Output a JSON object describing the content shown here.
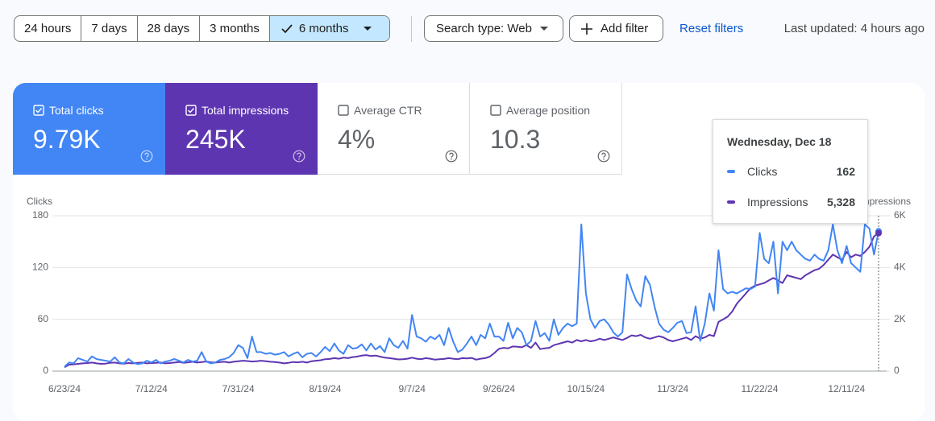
{
  "filters": {
    "ranges": [
      {
        "label": "24 hours",
        "selected": false
      },
      {
        "label": "7 days",
        "selected": false
      },
      {
        "label": "28 days",
        "selected": false
      },
      {
        "label": "3 months",
        "selected": false
      },
      {
        "label": "6 months",
        "selected": true
      }
    ],
    "search_type": "Search type: Web",
    "add_filter": "Add filter",
    "reset": "Reset filters",
    "updated": "Last updated: 4 hours ago"
  },
  "metrics": [
    {
      "label": "Total clicks",
      "value": "9.79K",
      "selected": true,
      "color": "#4285f4"
    },
    {
      "label": "Total impressions",
      "value": "245K",
      "selected": true,
      "color": "#5e35b1"
    },
    {
      "label": "Average CTR",
      "value": "4%",
      "selected": false,
      "color": "#00897b"
    },
    {
      "label": "Average position",
      "value": "10.3",
      "selected": false,
      "color": "#e8710a"
    }
  ],
  "chart_data": {
    "type": "line",
    "y_label": "Clicks",
    "y2_label": "Impressions",
    "categories": [
      "6/23/24",
      null,
      null,
      null,
      null,
      null,
      null,
      null,
      null,
      null,
      null,
      null,
      null,
      null,
      null,
      null,
      null,
      null,
      null,
      "7/12/24",
      null,
      null,
      null,
      null,
      null,
      null,
      null,
      null,
      null,
      null,
      null,
      null,
      null,
      null,
      null,
      null,
      null,
      null,
      "7/31/24",
      null,
      null,
      null,
      null,
      null,
      null,
      null,
      null,
      null,
      null,
      null,
      null,
      null,
      null,
      null,
      null,
      null,
      null,
      "8/19/24",
      null,
      null,
      null,
      null,
      null,
      null,
      null,
      null,
      null,
      null,
      null,
      null,
      null,
      null,
      null,
      null,
      null,
      null,
      "9/7/24",
      null,
      null,
      null,
      null,
      null,
      null,
      null,
      null,
      null,
      null,
      null,
      null,
      null,
      null,
      null,
      null,
      null,
      null,
      "9/26/24",
      null,
      null,
      null,
      null,
      null,
      null,
      null,
      null,
      null,
      null,
      null,
      null,
      null,
      null,
      null,
      null,
      null,
      null,
      "10/15/24",
      null,
      null,
      null,
      null,
      null,
      null,
      null,
      null,
      null,
      null,
      null,
      null,
      null,
      null,
      null,
      null,
      null,
      null,
      "11/3/24",
      null,
      null,
      null,
      null,
      null,
      null,
      null,
      null,
      null,
      null,
      null,
      null,
      null,
      null,
      null,
      null,
      null,
      null,
      "11/22/24",
      null,
      null,
      null,
      null,
      null,
      null,
      null,
      null,
      null,
      null,
      null,
      null,
      null,
      null,
      null,
      null,
      null,
      null,
      "12/11/24",
      null,
      null,
      null,
      null,
      null,
      null,
      null
    ],
    "series": [
      {
        "name": "Clicks",
        "color": "#4285f4",
        "axis": "y",
        "values": [
          5,
          10,
          9,
          15,
          13,
          11,
          17,
          14,
          13,
          12,
          11,
          16,
          10,
          9,
          14,
          10,
          8,
          9,
          12,
          10,
          13,
          9,
          11,
          12,
          14,
          12,
          10,
          13,
          11,
          12,
          22,
          11,
          9,
          10,
          13,
          14,
          16,
          21,
          30,
          27,
          15,
          40,
          22,
          22,
          20,
          21,
          19,
          20,
          22,
          17,
          20,
          22,
          16,
          20,
          21,
          17,
          22,
          28,
          23,
          32,
          24,
          20,
          30,
          26,
          27,
          31,
          24,
          32,
          25,
          29,
          22,
          38,
          30,
          27,
          35,
          26,
          65,
          40,
          38,
          34,
          40,
          37,
          42,
          30,
          50,
          34,
          22,
          25,
          32,
          40,
          30,
          42,
          38,
          55,
          40,
          40,
          35,
          56,
          38,
          50,
          45,
          30,
          35,
          58,
          40,
          44,
          35,
          60,
          42,
          50,
          55,
          52,
          55,
          170,
          90,
          60,
          50,
          58,
          60,
          54,
          45,
          40,
          45,
          112,
          95,
          82,
          75,
          110,
          100,
          75,
          55,
          48,
          45,
          50,
          56,
          58,
          44,
          45,
          75,
          35,
          55,
          90,
          70,
          140,
          95,
          90,
          92,
          90,
          93,
          96,
          95,
          98,
          160,
          130,
          125,
          150,
          90,
          150,
          140,
          150,
          140,
          135,
          130,
          128,
          135,
          130,
          128,
          140,
          170,
          140,
          125,
          145,
          125,
          120,
          115,
          170,
          165,
          135,
          162
        ]
      },
      {
        "name": "Impressions",
        "color": "#5e35b1",
        "axis": "y2",
        "values": [
          150,
          250,
          260,
          280,
          300,
          310,
          330,
          300,
          280,
          290,
          320,
          330,
          300,
          290,
          310,
          300,
          320,
          330,
          300,
          310,
          320,
          330,
          300,
          310,
          330,
          350,
          320,
          340,
          360,
          330,
          350,
          370,
          340,
          330,
          350,
          360,
          330,
          360,
          380,
          400,
          390,
          370,
          380,
          400,
          380,
          360,
          350,
          330,
          300,
          320,
          350,
          340,
          360,
          330,
          380,
          400,
          420,
          460,
          470,
          500,
          480,
          520,
          500,
          540,
          560,
          600,
          620,
          580,
          600,
          560,
          520,
          500,
          480,
          450,
          460,
          480,
          520,
          480,
          460,
          500,
          480,
          440,
          460,
          470,
          500,
          480,
          460,
          500,
          490,
          510,
          440,
          480,
          500,
          560,
          700,
          860,
          900,
          880,
          950,
          940,
          920,
          1000,
          900,
          1100,
          850,
          880,
          900,
          1000,
          1050,
          1100,
          1150,
          1100,
          1200,
          1150,
          1200,
          1150,
          1180,
          1250,
          1200,
          1250,
          1300,
          1250,
          1200,
          1280,
          1380,
          1350,
          1400,
          1300,
          1250,
          1300,
          1350,
          1300,
          1200,
          1150,
          1200,
          1250,
          1300,
          1200,
          1350,
          1250,
          1300,
          1400,
          1350,
          1900,
          2000,
          2100,
          2300,
          2600,
          2800,
          3000,
          3200,
          3300,
          3350,
          3400,
          3500,
          3600,
          3500,
          3400,
          3700,
          3650,
          3600,
          3550,
          3700,
          3800,
          3900,
          3950,
          4100,
          4300,
          4500,
          4400,
          4300,
          4600,
          4400,
          4500,
          4450,
          4600,
          4800,
          5200,
          5328
        ]
      }
    ],
    "ylim": [
      0,
      180
    ],
    "yticks": [
      0,
      60,
      120,
      180
    ],
    "y2lim": [
      0,
      6000
    ],
    "y2ticks": [
      0,
      {
        "value": 2000,
        "label": "2K"
      },
      {
        "value": 4000,
        "label": "4K"
      },
      {
        "value": 6000,
        "label": "6K"
      }
    ],
    "grid": true,
    "tooltip": {
      "title": "Wednesday, Dec 18",
      "rows": [
        {
          "value": 162
        },
        {
          "value": 5328,
          "value_label": "5,328"
        }
      ]
    }
  }
}
